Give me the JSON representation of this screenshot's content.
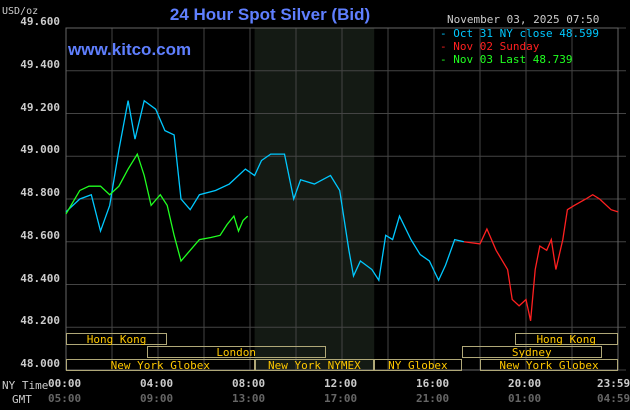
{
  "title": "24 Hour Spot Silver (Bid)",
  "site": "www.kitco.com",
  "unit": "USD/oz",
  "timestamp": "November 03, 2025 07:50",
  "legend": [
    {
      "label": "Oct 31 NY close 48.599",
      "color": "#00c8ff"
    },
    {
      "label": "Nov 02 Sunday",
      "color": "#ff2020"
    },
    {
      "label": "Nov 03 Last 48.739",
      "color": "#20ff20"
    }
  ],
  "axis": {
    "y_ticks": [
      "49.600",
      "49.400",
      "49.200",
      "49.000",
      "48.800",
      "48.600",
      "48.400",
      "48.200",
      "48.000"
    ],
    "x_ticks": [
      "00:00",
      "04:00",
      "08:00",
      "12:00",
      "16:00",
      "20:00",
      "23:59"
    ],
    "gmt_ticks": [
      "05:00",
      "09:00",
      "13:00",
      "17:00",
      "21:00",
      "01:00",
      "04:59"
    ],
    "ny_row_label": "NY Time",
    "gmt_row_label": "GMT"
  },
  "sessions": [
    {
      "label": "Hong Kong",
      "start": 0,
      "end": 4.4,
      "row": 0
    },
    {
      "label": "Hong Kong",
      "start": 19.5,
      "end": 24,
      "row": 0
    },
    {
      "label": "London",
      "start": 3.5,
      "end": 11.3,
      "row": 1
    },
    {
      "label": "Sydney",
      "start": 17.2,
      "end": 23.3,
      "row": 1
    },
    {
      "label": "New York Globex",
      "start": 0,
      "end": 8.2,
      "row": 2
    },
    {
      "label": "New York NYMEX",
      "start": 8.2,
      "end": 13.4,
      "row": 2
    },
    {
      "label": "NY Globex",
      "start": 13.4,
      "end": 17.2,
      "row": 2
    },
    {
      "label": "New York Globex",
      "start": 18,
      "end": 24,
      "row": 2
    }
  ],
  "chart_data": {
    "type": "line",
    "title": "24 Hour Spot Silver (Bid)",
    "ylabel": "USD/oz",
    "ylim": [
      48.0,
      49.6
    ],
    "xlim": [
      0,
      24
    ],
    "grid": true,
    "legend_position": "top-right",
    "shaded_range": [
      8.2,
      13.4
    ],
    "series": [
      {
        "name": "Oct 31 NY close 48.599",
        "color": "#00c8ff",
        "points": [
          [
            0,
            48.74
          ],
          [
            0.6,
            48.8
          ],
          [
            1.1,
            48.82
          ],
          [
            1.5,
            48.65
          ],
          [
            1.9,
            48.77
          ],
          [
            2.3,
            49.03
          ],
          [
            2.7,
            49.26
          ],
          [
            3.0,
            49.08
          ],
          [
            3.4,
            49.26
          ],
          [
            3.9,
            49.22
          ],
          [
            4.3,
            49.12
          ],
          [
            4.7,
            49.1
          ],
          [
            5.0,
            48.8
          ],
          [
            5.4,
            48.75
          ],
          [
            5.8,
            48.82
          ],
          [
            6.5,
            48.84
          ],
          [
            7.1,
            48.87
          ],
          [
            7.8,
            48.94
          ],
          [
            8.2,
            48.91
          ],
          [
            8.5,
            48.98
          ],
          [
            8.9,
            49.01
          ],
          [
            9.5,
            49.01
          ],
          [
            9.9,
            48.8
          ],
          [
            10.2,
            48.89
          ],
          [
            10.8,
            48.87
          ],
          [
            11.5,
            48.91
          ],
          [
            11.9,
            48.84
          ],
          [
            12.3,
            48.56
          ],
          [
            12.5,
            48.44
          ],
          [
            12.8,
            48.51
          ],
          [
            13.3,
            48.47
          ],
          [
            13.6,
            48.42
          ],
          [
            13.9,
            48.63
          ],
          [
            14.2,
            48.61
          ],
          [
            14.5,
            48.72
          ],
          [
            15.0,
            48.61
          ],
          [
            15.4,
            48.54
          ],
          [
            15.8,
            48.51
          ],
          [
            16.2,
            48.42
          ],
          [
            16.5,
            48.49
          ],
          [
            16.9,
            48.61
          ],
          [
            17.3,
            48.6
          ]
        ]
      },
      {
        "name": "Nov 02 Sunday",
        "color": "#ff2020",
        "points": [
          [
            17.3,
            48.6
          ],
          [
            18.0,
            48.59
          ],
          [
            18.3,
            48.66
          ],
          [
            18.7,
            48.56
          ],
          [
            19.2,
            48.47
          ],
          [
            19.4,
            48.33
          ],
          [
            19.7,
            48.3
          ],
          [
            20.0,
            48.33
          ],
          [
            20.2,
            48.23
          ],
          [
            20.4,
            48.47
          ],
          [
            20.6,
            48.58
          ],
          [
            20.9,
            48.56
          ],
          [
            21.1,
            48.61
          ],
          [
            21.3,
            48.47
          ],
          [
            21.6,
            48.61
          ],
          [
            21.8,
            48.75
          ],
          [
            22.1,
            48.77
          ],
          [
            22.6,
            48.8
          ],
          [
            22.9,
            48.82
          ],
          [
            23.2,
            48.8
          ],
          [
            23.7,
            48.75
          ],
          [
            24,
            48.74
          ]
        ]
      },
      {
        "name": "Nov 03 Last 48.739",
        "color": "#20ff20",
        "points": [
          [
            0,
            48.73
          ],
          [
            0.6,
            48.84
          ],
          [
            1.0,
            48.86
          ],
          [
            1.5,
            48.86
          ],
          [
            1.9,
            48.82
          ],
          [
            2.3,
            48.86
          ],
          [
            2.7,
            48.94
          ],
          [
            3.1,
            49.01
          ],
          [
            3.4,
            48.91
          ],
          [
            3.7,
            48.77
          ],
          [
            4.1,
            48.82
          ],
          [
            4.4,
            48.77
          ],
          [
            4.7,
            48.63
          ],
          [
            5.0,
            48.51
          ],
          [
            5.4,
            48.56
          ],
          [
            5.8,
            48.61
          ],
          [
            6.3,
            48.62
          ],
          [
            6.7,
            48.63
          ],
          [
            7.0,
            48.68
          ],
          [
            7.3,
            48.72
          ],
          [
            7.5,
            48.65
          ],
          [
            7.7,
            48.7
          ],
          [
            7.9,
            48.72
          ]
        ]
      }
    ]
  }
}
